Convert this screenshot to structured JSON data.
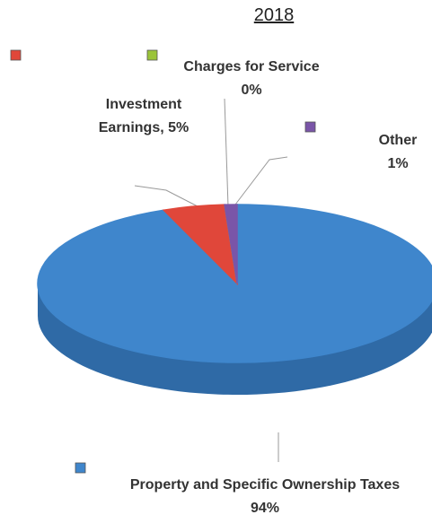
{
  "chart_data": {
    "type": "pie",
    "title": "2018",
    "categories": [
      "Property and Specific Ownership Taxes",
      "Investment Earnings,",
      "Charges for Service",
      "Other"
    ],
    "values": [
      94,
      5,
      0,
      1
    ],
    "value_labels": [
      "94%",
      "5%",
      "0%",
      "1%"
    ],
    "colors": [
      "#3f86cc",
      "#e0473a",
      "#9bc43a",
      "#7a55a8"
    ]
  }
}
